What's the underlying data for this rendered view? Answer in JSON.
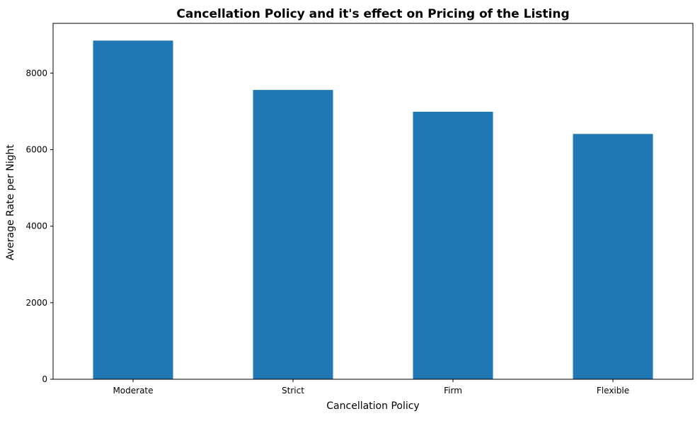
{
  "colors": {
    "bar": "#1f77b4",
    "axis": "#000000",
    "background": "#ffffff"
  },
  "chart_data": {
    "type": "bar",
    "title": "Cancellation Policy and it's effect on Pricing of the Listing",
    "xlabel": "Cancellation Policy",
    "ylabel": "Average Rate per Night",
    "categories": [
      "Moderate",
      "Strict",
      "Firm",
      "Flexible"
    ],
    "values": [
      8850,
      7560,
      6990,
      6410
    ],
    "ylim": [
      0,
      9300
    ],
    "yticks": [
      0,
      2000,
      4000,
      6000,
      8000
    ],
    "grid": false,
    "legend": "none"
  }
}
